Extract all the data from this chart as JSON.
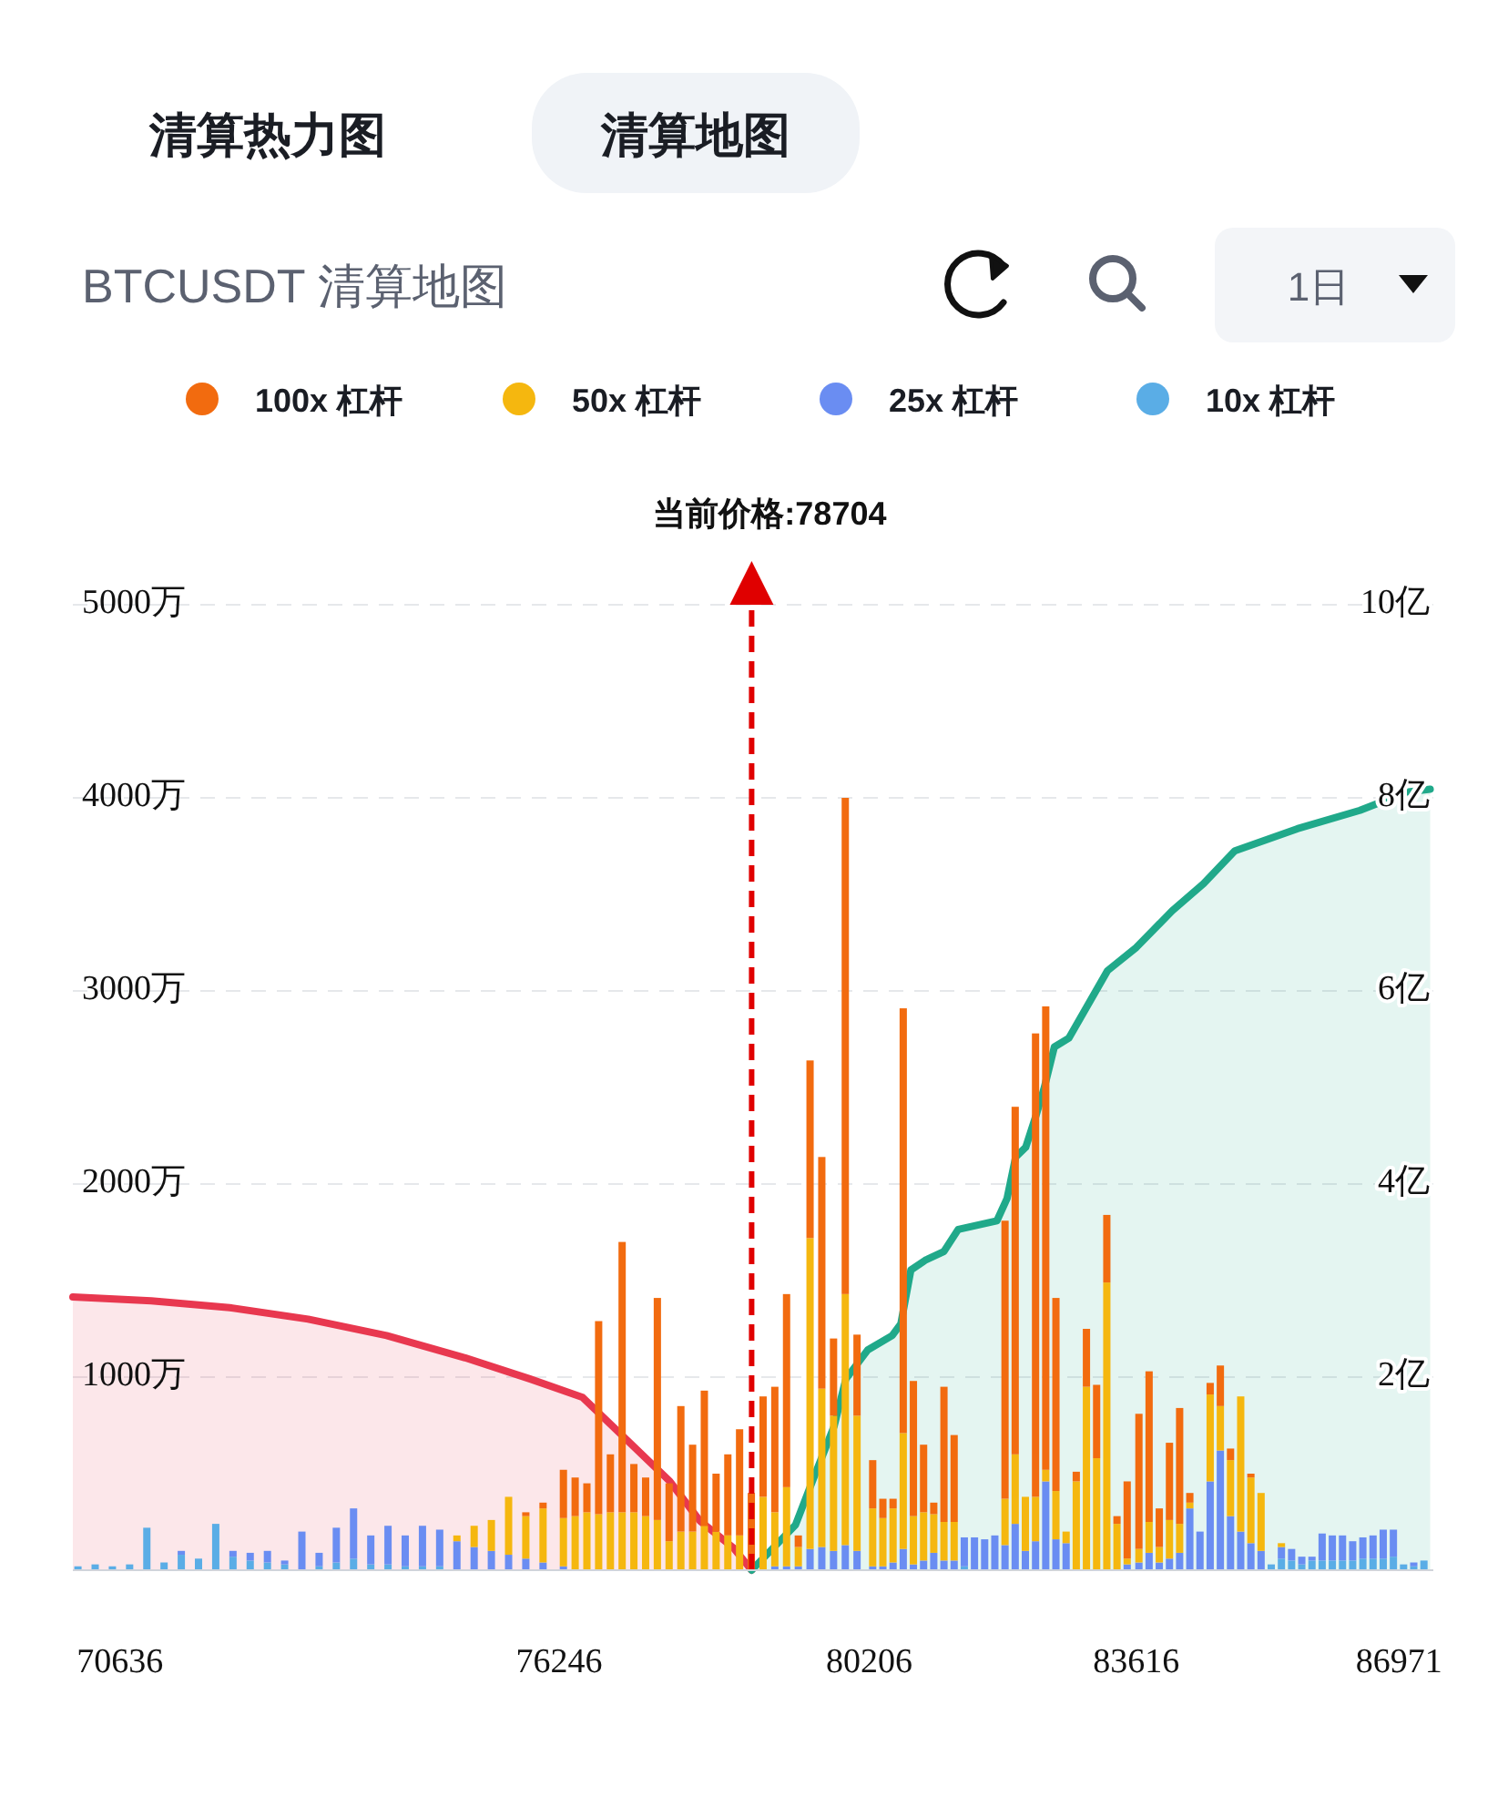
{
  "chart_data": {
    "type": "bar",
    "title": "BTCUSDT 清算地图",
    "annotations": [
      "清算热力图",
      "清算地图",
      "1日"
    ],
    "stacked": true,
    "legend": "top",
    "grid": "y",
    "xlim": [
      70035,
      87410
    ],
    "xticks": [
      70636,
      76246,
      80206,
      83616,
      86971
    ],
    "ylim": [
      0,
      5000
    ],
    "yticks": [
      {
        "value": 1000,
        "label": "1000万"
      },
      {
        "value": 2000,
        "label": "2000万"
      },
      {
        "value": 3000,
        "label": "3000万"
      },
      {
        "value": 4000,
        "label": "4000万"
      },
      {
        "value": 5000,
        "label": "5000万"
      }
    ],
    "y2lim": [
      0,
      10
    ],
    "y2ticks": [
      {
        "value": 2,
        "label": "2亿"
      },
      {
        "value": 4,
        "label": "4亿"
      },
      {
        "value": 6,
        "label": "6亿"
      },
      {
        "value": 8,
        "label": "8亿"
      },
      {
        "value": 10,
        "label": "10亿"
      }
    ],
    "ref_lines": [
      {
        "axis": "x",
        "value": 78704,
        "label": "当前价格:78704",
        "color": "#e00000",
        "line_style": "dashed"
      }
    ],
    "x": [
      70100,
      70320,
      70540,
      70760,
      70980,
      71200,
      71420,
      71640,
      71860,
      72080,
      72300,
      72520,
      72740,
      72960,
      73180,
      73400,
      73620,
      73840,
      74060,
      74280,
      74500,
      74720,
      74940,
      75160,
      75380,
      75600,
      75820,
      76040,
      76300,
      76450,
      76600,
      76750,
      76900,
      77050,
      77200,
      77350,
      77500,
      77650,
      77800,
      77950,
      78100,
      78250,
      78400,
      78550,
      78700,
      78850,
      79000,
      79150,
      79300,
      79450,
      79600,
      79750,
      79900,
      80050,
      80250,
      80380,
      80510,
      80640,
      80770,
      80900,
      81030,
      81160,
      81290,
      81420,
      81550,
      81680,
      81810,
      81940,
      82070,
      82200,
      82330,
      82460,
      82590,
      82720,
      82850,
      82980,
      83110,
      83240,
      83370,
      83500,
      83650,
      83780,
      83910,
      84040,
      84170,
      84300,
      84430,
      84560,
      84690,
      84820,
      84950,
      85080,
      85210,
      85340,
      85470,
      85600,
      85730,
      85860,
      85990,
      86120,
      86250,
      86380,
      86510,
      86640,
      86770,
      86900,
      87030,
      87160,
      87290
    ],
    "series": [
      {
        "name": "10x 杠杆",
        "color": "#5aade6",
        "values": [
          20,
          30,
          20,
          30,
          220,
          40,
          80,
          60,
          240,
          70,
          50,
          40,
          30,
          0,
          20,
          40,
          60,
          30,
          30,
          20,
          20,
          20,
          0,
          0,
          0,
          0,
          0,
          0,
          0,
          0,
          0,
          0,
          0,
          0,
          0,
          0,
          0,
          0,
          0,
          0,
          0,
          0,
          0,
          0,
          0,
          0,
          0,
          0,
          0,
          0,
          0,
          0,
          0,
          0,
          0,
          0,
          0,
          0,
          0,
          0,
          0,
          0,
          0,
          20,
          0,
          0,
          0,
          0,
          0,
          0,
          0,
          0,
          0,
          0,
          0,
          0,
          0,
          0,
          0,
          0,
          0,
          0,
          0,
          0,
          0,
          0,
          0,
          0,
          0,
          0,
          0,
          0,
          0,
          30,
          60,
          50,
          30,
          50,
          50,
          50,
          50,
          50,
          60,
          60,
          60,
          70,
          30,
          20,
          50
        ]
      },
      {
        "name": "25x 杠杆",
        "color": "#6a8df2",
        "values": [
          0,
          0,
          0,
          0,
          0,
          0,
          20,
          0,
          0,
          30,
          40,
          60,
          20,
          200,
          70,
          180,
          260,
          150,
          200,
          160,
          210,
          190,
          150,
          120,
          100,
          80,
          60,
          40,
          20,
          0,
          0,
          0,
          0,
          0,
          0,
          0,
          0,
          0,
          0,
          0,
          0,
          0,
          0,
          0,
          0,
          0,
          20,
          20,
          20,
          110,
          120,
          100,
          130,
          100,
          20,
          20,
          40,
          110,
          30,
          50,
          90,
          50,
          50,
          150,
          170,
          160,
          180,
          130,
          240,
          100,
          150,
          460,
          160,
          140,
          0,
          0,
          0,
          0,
          0,
          30,
          40,
          90,
          40,
          60,
          90,
          320,
          200,
          460,
          620,
          280,
          200,
          140,
          100,
          0,
          60,
          60,
          40,
          20,
          140,
          130,
          130,
          100,
          110,
          120,
          150,
          140,
          0,
          20,
          0
        ]
      },
      {
        "name": "50x 杠杆",
        "color": "#f5b70f",
        "values": [
          0,
          0,
          0,
          0,
          0,
          0,
          0,
          0,
          0,
          0,
          0,
          0,
          0,
          0,
          0,
          0,
          0,
          0,
          0,
          0,
          0,
          0,
          30,
          110,
          160,
          300,
          220,
          280,
          250,
          280,
          300,
          290,
          300,
          300,
          300,
          280,
          260,
          150,
          200,
          200,
          230,
          200,
          180,
          180,
          null,
          380,
          280,
          410,
          100,
          1610,
          820,
          700,
          1300,
          700,
          300,
          250,
          280,
          600,
          250,
          250,
          200,
          200,
          200,
          0,
          0,
          0,
          0,
          240,
          360,
          280,
          230,
          60,
          250,
          60,
          460,
          950,
          580,
          1490,
          240,
          30,
          70,
          160,
          80,
          200,
          150,
          30,
          0,
          450,
          230,
          290,
          700,
          340,
          300,
          0,
          20,
          0,
          0,
          0,
          0,
          0,
          0,
          0,
          0,
          0,
          0,
          0,
          0,
          0,
          0
        ]
      },
      {
        "name": "100x 杠杆",
        "color": "#f26b0f",
        "values": [
          0,
          0,
          0,
          0,
          0,
          0,
          0,
          0,
          0,
          0,
          0,
          0,
          0,
          0,
          0,
          0,
          0,
          0,
          0,
          0,
          0,
          0,
          0,
          0,
          0,
          0,
          20,
          30,
          250,
          200,
          150,
          1000,
          300,
          1400,
          250,
          200,
          1150,
          300,
          650,
          450,
          700,
          300,
          420,
          550,
          400,
          520,
          650,
          1000,
          60,
          920,
          1200,
          400,
          2570,
          420,
          250,
          100,
          50,
          2200,
          700,
          350,
          60,
          700,
          450,
          0,
          0,
          0,
          0,
          1440,
          1800,
          0,
          2400,
          2400,
          1000,
          0,
          50,
          300,
          380,
          350,
          40,
          400,
          700,
          780,
          200,
          400,
          600,
          50,
          0,
          60,
          210,
          60,
          0,
          20,
          0,
          0,
          0,
          0,
          0,
          0,
          0,
          0,
          0,
          0,
          0,
          0,
          0,
          0,
          0,
          0,
          0
        ]
      },
      {
        "type": "area",
        "axis": "y2",
        "color": "#e8384f",
        "x": [
          70035,
          71037,
          72038,
          73040,
          74042,
          75044,
          75877,
          76546,
          77659,
          78044,
          78473,
          78704
        ],
        "values": [
          2.83,
          2.79,
          2.72,
          2.6,
          2.43,
          2.2,
          1.98,
          1.79,
          0.92,
          0.51,
          0.23,
          0
        ]
      },
      {
        "type": "area",
        "axis": "y2",
        "color": "#20a98a",
        "x": [
          78704,
          79265,
          79479,
          79757,
          79907,
          80185,
          80499,
          80609,
          80738,
          80921,
          81159,
          81342,
          81837,
          81966,
          82076,
          82204,
          82332,
          82442,
          82570,
          82754,
          83249,
          83616,
          84075,
          84475,
          84874,
          85673,
          86472,
          87071,
          87370
        ],
        "values": [
          0,
          0.47,
          0.92,
          1.49,
          1.98,
          2.28,
          2.43,
          2.55,
          3.11,
          3.21,
          3.3,
          3.53,
          3.62,
          3.85,
          4.28,
          4.38,
          4.7,
          5.0,
          5.42,
          5.51,
          6.21,
          6.45,
          6.83,
          7.11,
          7.45,
          7.68,
          7.87,
          8.06,
          8.09
        ]
      }
    ]
  }
}
